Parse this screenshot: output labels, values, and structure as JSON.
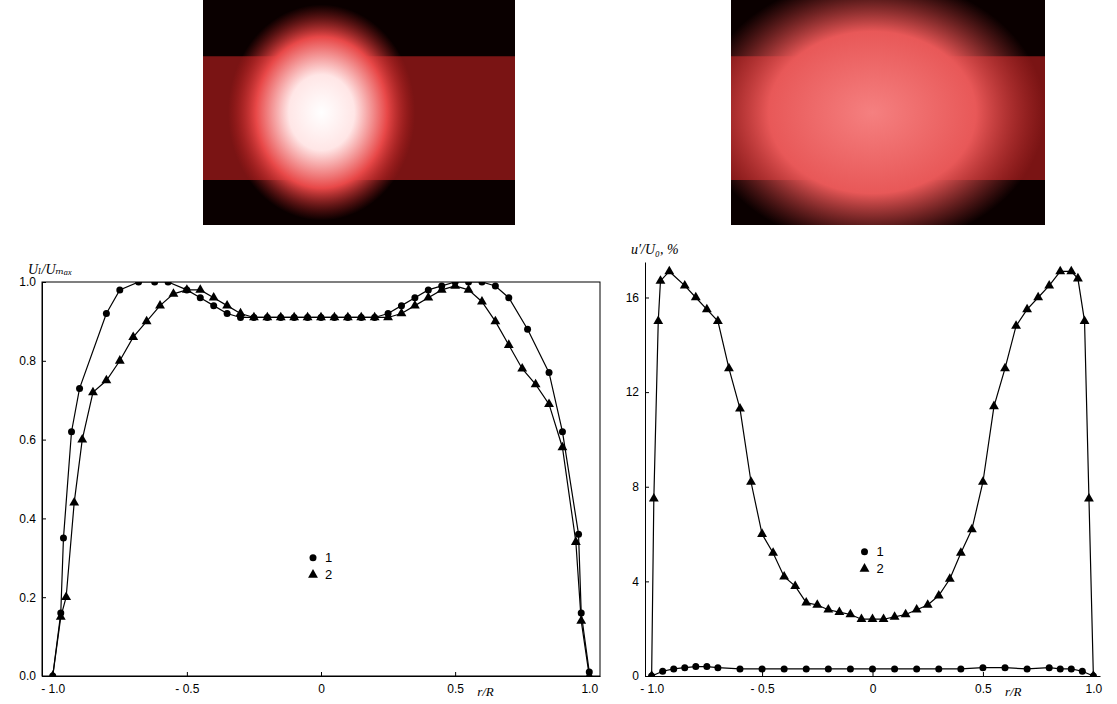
{
  "chart_data": [
    {
      "type": "line",
      "x_label": "r/R",
      "y_label": "Uₗ/Uₘₐₓ",
      "xlim": [
        -1.04,
        1.04
      ],
      "ylim": [
        0,
        1.0
      ],
      "xticks": [
        {
          "value": -1,
          "label": "- 1.0"
        },
        {
          "value": -0.5,
          "label": "- 0.5"
        },
        0,
        0.5,
        {
          "value": 1,
          "label": "1.0"
        }
      ],
      "yticks": [
        {
          "value": 0,
          "label": "0.0"
        },
        0.2,
        0.4,
        0.6,
        0.8,
        {
          "value": 1,
          "label": "1.0"
        }
      ],
      "grid": false,
      "legend": "center",
      "series": [
        {
          "name": "1",
          "color": "#000000",
          "marker": "circle",
          "x": [
            -1.0,
            -0.97,
            -0.96,
            -0.93,
            -0.9,
            -0.8,
            -0.75,
            -0.68,
            -0.62,
            -0.57,
            -0.5,
            -0.45,
            -0.4,
            -0.35,
            -0.3,
            -0.25,
            -0.2,
            -0.15,
            -0.1,
            -0.05,
            0,
            0.05,
            0.1,
            0.15,
            0.2,
            0.25,
            0.3,
            0.35,
            0.4,
            0.45,
            0.5,
            0.55,
            0.6,
            0.65,
            0.7,
            0.77,
            0.85,
            0.9,
            0.96,
            0.97,
            1.0
          ],
          "values": [
            0,
            0.16,
            0.35,
            0.62,
            0.73,
            0.92,
            0.98,
            1.0,
            1.0,
            1.0,
            0.98,
            0.96,
            0.94,
            0.92,
            0.91,
            0.91,
            0.91,
            0.91,
            0.91,
            0.91,
            0.91,
            0.91,
            0.91,
            0.91,
            0.91,
            0.92,
            0.94,
            0.96,
            0.98,
            0.99,
            1.0,
            1.0,
            1.0,
            0.99,
            0.96,
            0.88,
            0.77,
            0.62,
            0.36,
            0.16,
            0.01
          ]
        },
        {
          "name": "2",
          "color": "#000000",
          "marker": "triangle",
          "x": [
            -1.0,
            -0.97,
            -0.95,
            -0.92,
            -0.89,
            -0.85,
            -0.8,
            -0.75,
            -0.7,
            -0.65,
            -0.6,
            -0.55,
            -0.5,
            -0.45,
            -0.4,
            -0.35,
            -0.3,
            -0.25,
            -0.2,
            -0.15,
            -0.1,
            -0.05,
            0,
            0.05,
            0.1,
            0.15,
            0.2,
            0.25,
            0.3,
            0.35,
            0.4,
            0.45,
            0.5,
            0.55,
            0.6,
            0.65,
            0.7,
            0.75,
            0.8,
            0.85,
            0.9,
            0.95,
            0.97,
            1.0
          ],
          "values": [
            0,
            0.15,
            0.2,
            0.44,
            0.6,
            0.72,
            0.75,
            0.8,
            0.86,
            0.9,
            0.94,
            0.97,
            0.98,
            0.98,
            0.96,
            0.94,
            0.92,
            0.91,
            0.91,
            0.91,
            0.91,
            0.91,
            0.91,
            0.91,
            0.91,
            0.91,
            0.91,
            0.91,
            0.92,
            0.94,
            0.96,
            0.98,
            0.99,
            0.98,
            0.95,
            0.9,
            0.84,
            0.78,
            0.74,
            0.69,
            0.58,
            0.34,
            0.14,
            0
          ]
        }
      ]
    },
    {
      "type": "line",
      "x_label": "r/R",
      "y_label": "u′/U₀, %",
      "xlim": [
        -1.03,
        1.03
      ],
      "ylim": [
        0,
        17.5
      ],
      "xticks": [
        {
          "value": -1,
          "label": "- 1.0"
        },
        {
          "value": -0.5,
          "label": "- 0.5"
        },
        0,
        0.5,
        {
          "value": 1,
          "label": "1.0"
        }
      ],
      "yticks": [
        0,
        4,
        8,
        12,
        16
      ],
      "grid": false,
      "legend": "center",
      "series": [
        {
          "name": "1",
          "color": "#000000",
          "marker": "circle",
          "x": [
            -1.0,
            -0.95,
            -0.9,
            -0.85,
            -0.8,
            -0.75,
            -0.7,
            -0.6,
            -0.5,
            -0.4,
            -0.3,
            -0.2,
            -0.1,
            0,
            0.1,
            0.2,
            0.3,
            0.4,
            0.5,
            0.6,
            0.7,
            0.8,
            0.85,
            0.9,
            0.95,
            1.0
          ],
          "values": [
            0,
            0.2,
            0.3,
            0.35,
            0.4,
            0.4,
            0.35,
            0.3,
            0.3,
            0.3,
            0.3,
            0.3,
            0.3,
            0.3,
            0.3,
            0.3,
            0.3,
            0.3,
            0.35,
            0.35,
            0.3,
            0.35,
            0.3,
            0.3,
            0.2,
            0
          ]
        },
        {
          "name": "2",
          "color": "#000000",
          "marker": "triangle",
          "x": [
            -1.0,
            -0.99,
            -0.97,
            -0.96,
            -0.92,
            -0.85,
            -0.8,
            -0.75,
            -0.7,
            -0.65,
            -0.6,
            -0.55,
            -0.5,
            -0.45,
            -0.4,
            -0.35,
            -0.3,
            -0.25,
            -0.2,
            -0.15,
            -0.1,
            -0.05,
            0,
            0.05,
            0.1,
            0.15,
            0.2,
            0.25,
            0.3,
            0.35,
            0.4,
            0.45,
            0.5,
            0.55,
            0.6,
            0.65,
            0.7,
            0.75,
            0.8,
            0.85,
            0.9,
            0.93,
            0.96,
            0.98,
            1.0
          ],
          "values": [
            0,
            7.5,
            15,
            16.7,
            17.1,
            16.5,
            16,
            15.5,
            15,
            13,
            11.3,
            8.2,
            6,
            5.2,
            4.2,
            3.8,
            3.1,
            3.0,
            2.8,
            2.7,
            2.6,
            2.4,
            2.4,
            2.4,
            2.5,
            2.6,
            2.8,
            3.0,
            3.4,
            4.1,
            5.2,
            6.2,
            8.2,
            11.4,
            13,
            14.8,
            15.5,
            16,
            16.5,
            17.1,
            17.1,
            16.8,
            15,
            7.5,
            0
          ]
        }
      ]
    }
  ]
}
